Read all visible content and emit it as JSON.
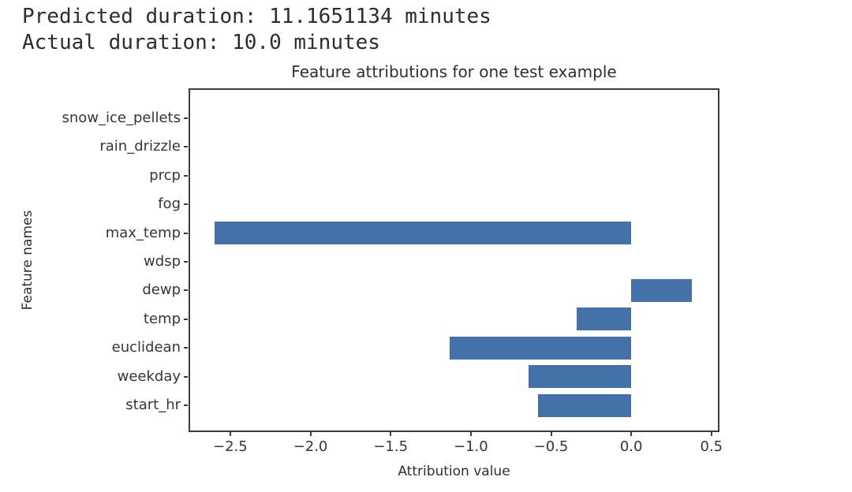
{
  "stdout": {
    "line1": "Predicted duration: 11.1651134 minutes",
    "line2": "Actual duration: 10.0 minutes"
  },
  "chart_data": {
    "type": "bar",
    "orientation": "horizontal",
    "title": "Feature attributions for one test example",
    "xlabel": "Attribution value",
    "ylabel": "Feature names",
    "categories": [
      "snow_ice_pellets",
      "rain_drizzle",
      "prcp",
      "fog",
      "max_temp",
      "wdsp",
      "dewp",
      "temp",
      "euclidean",
      "weekday",
      "start_hr"
    ],
    "values": [
      0,
      0,
      0,
      0,
      -2.6,
      0,
      0.38,
      -0.34,
      -1.13,
      -0.64,
      -0.58
    ],
    "xticks": [
      -2.5,
      -2.0,
      -1.5,
      -1.0,
      -0.5,
      0.0,
      0.5
    ],
    "xtick_labels": [
      "−2.5",
      "−2.0",
      "−1.5",
      "−1.0",
      "−0.5",
      "0.0",
      "0.5"
    ],
    "xlim": [
      -2.76,
      0.55
    ],
    "grid": false,
    "legend": null,
    "bar_color": "#4471a8",
    "spine_color": "#3b3b3b"
  }
}
